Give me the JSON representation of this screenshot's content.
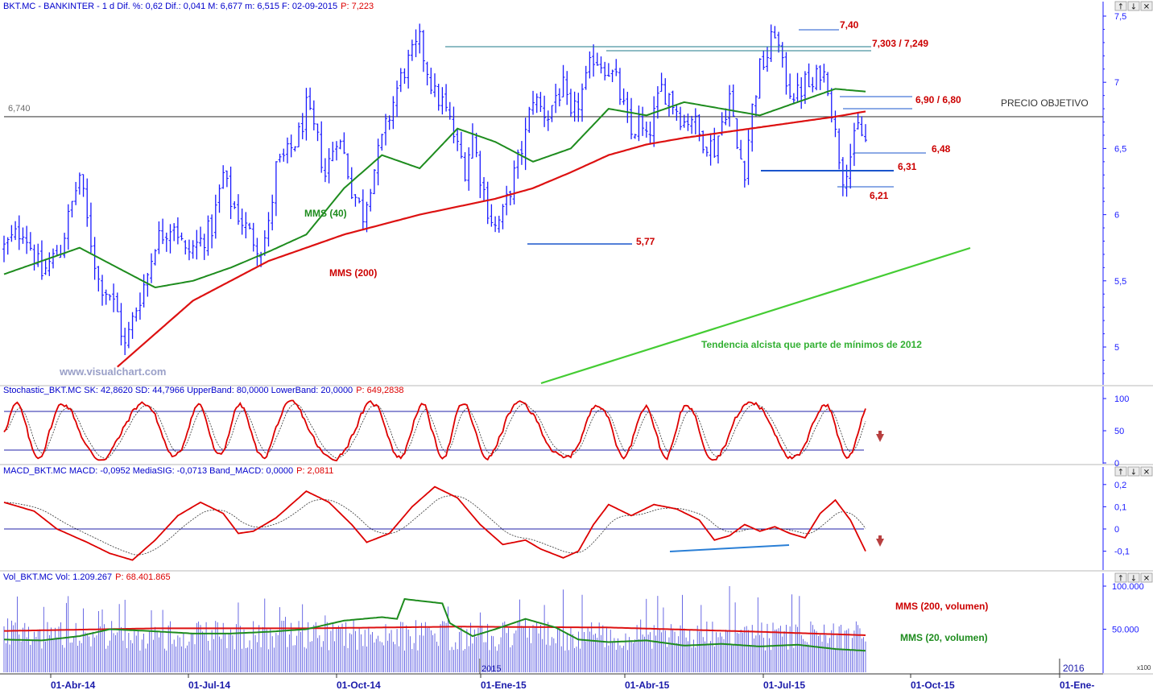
{
  "colors": {
    "price": "#1a1aff",
    "sma40": "#1e8c1e",
    "sma200": "#dd1111",
    "annot_red": "#cc0000",
    "annot_blue": "#1a55cc",
    "trend": "#44cc33",
    "axis": "#1a1aff",
    "header_blue": "#0000cc",
    "header_red": "#dd0000",
    "watermark": "#9aa0c8",
    "ref_line": "#6b6b6b"
  },
  "window_buttons": [
    "↑",
    "↓",
    "✕"
  ],
  "header": {
    "main": "BKT.MC - BANKINTER - 1 d Dif. %: 0,62 Dif.: 0,041 M: 6,677 m: 6,515 F: 02-09-2015",
    "main_p": "P: 7,223",
    "stoch": "Stochastic_BKT.MC SK: 42,8620 SD: 44,7966 UpperBand: 80,0000 LowerBand: 20,0000",
    "stoch_p": "P: 649,2838",
    "macd": "MACD_BKT.MC MACD: -0,0952 MediaSIG: -0,0713 Band_MACD: 0,0000",
    "macd_p": "P: 2,0811",
    "vol": "Vol_BKT.MC Vol: 1.209.267",
    "vol_p": "P: 68.401.865"
  },
  "annotations": {
    "ref_value": "6,740",
    "precio_objetivo": "PRECIO OBJETIVO",
    "l740": "7,40",
    "l7303": "7,303 / 7,249",
    "l690": "6,90 / 6,80",
    "l648": "6,48",
    "l631": "6,31",
    "l621": "6,21",
    "l577": "5,77",
    "mms40": "MMS (40)",
    "mms200": "MMS (200)",
    "trend_text": "Tendencia alcista que parte de mínimos de 2012",
    "watermark": "www.visualchart.com",
    "vol_mms200": "MMS (200, volumen)",
    "vol_mms20": "MMS (20, volumen)",
    "year_2015": "2015",
    "year_2016": "2016",
    "x100": "x100"
  },
  "chart_data": [
    {
      "type": "line",
      "title": "BKT.MC - BANKINTER",
      "series_names": [
        "MMS (40)",
        "MMS (200)"
      ],
      "x_tick_labels": [
        "01-Abr-14",
        "01-Jul-14",
        "01-Oct-14",
        "01-Ene-15",
        "01-Abr-15",
        "01-Jul-15",
        "01-Oct-15",
        "01-Ene-"
      ],
      "y_tick_labels": [
        "7,5",
        "7",
        "6,5",
        "6",
        "5,5",
        "5"
      ],
      "ylim": [
        4.75,
        7.55
      ],
      "key_prices": [
        7.4,
        7.303,
        7.249,
        6.9,
        6.8,
        6.74,
        6.48,
        6.31,
        6.21,
        5.77
      ],
      "close_path": [
        [
          0,
          5.75
        ],
        [
          5,
          5.9
        ],
        [
          10,
          5.55
        ],
        [
          15,
          5.75
        ],
        [
          20,
          6.3
        ],
        [
          22,
          5.95
        ],
        [
          25,
          5.5
        ],
        [
          28,
          5.4
        ],
        [
          30,
          5.25
        ],
        [
          32,
          5.0
        ],
        [
          35,
          5.3
        ],
        [
          38,
          5.55
        ],
        [
          40,
          5.8
        ],
        [
          45,
          5.95
        ],
        [
          48,
          5.7
        ],
        [
          52,
          5.8
        ],
        [
          55,
          5.9
        ],
        [
          58,
          6.3
        ],
        [
          60,
          6.1
        ],
        [
          62,
          6.0
        ],
        [
          65,
          5.85
        ],
        [
          68,
          5.75
        ],
        [
          70,
          5.9
        ],
        [
          72,
          6.35
        ],
        [
          75,
          6.45
        ],
        [
          78,
          6.6
        ],
        [
          80,
          6.8
        ],
        [
          83,
          6.55
        ],
        [
          85,
          6.3
        ],
        [
          88,
          6.6
        ],
        [
          90,
          6.45
        ],
        [
          92,
          6.2
        ],
        [
          95,
          6.0
        ],
        [
          97,
          6.25
        ],
        [
          100,
          6.55
        ],
        [
          102,
          6.75
        ],
        [
          104,
          6.95
        ],
        [
          106,
          7.1
        ],
        [
          108,
          7.2
        ],
        [
          110,
          7.3
        ],
        [
          112,
          7.1
        ],
        [
          114,
          6.9
        ],
        [
          116,
          6.85
        ],
        [
          118,
          6.7
        ],
        [
          120,
          6.5
        ],
        [
          122,
          6.35
        ],
        [
          124,
          6.6
        ],
        [
          126,
          6.3
        ],
        [
          128,
          6.05
        ],
        [
          130,
          5.9
        ],
        [
          132,
          6.0
        ],
        [
          134,
          6.2
        ],
        [
          136,
          6.4
        ],
        [
          138,
          6.6
        ],
        [
          140,
          6.9
        ],
        [
          142,
          6.8
        ],
        [
          144,
          6.75
        ],
        [
          146,
          6.9
        ],
        [
          148,
          6.95
        ],
        [
          150,
          6.7
        ],
        [
          152,
          6.85
        ],
        [
          154,
          7.0
        ],
        [
          156,
          7.2
        ],
        [
          158,
          7.15
        ],
        [
          160,
          7.1
        ],
        [
          162,
          7.0
        ],
        [
          164,
          6.8
        ],
        [
          166,
          6.6
        ],
        [
          168,
          6.7
        ],
        [
          170,
          6.55
        ],
        [
          172,
          6.75
        ],
        [
          174,
          6.95
        ],
        [
          176,
          6.9
        ],
        [
          178,
          6.8
        ],
        [
          180,
          6.7
        ],
        [
          182,
          6.75
        ],
        [
          184,
          6.6
        ],
        [
          186,
          6.55
        ],
        [
          188,
          6.5
        ],
        [
          190,
          6.7
        ],
        [
          192,
          6.9
        ],
        [
          194,
          6.5
        ],
        [
          196,
          6.35
        ],
        [
          198,
          6.8
        ],
        [
          200,
          7.1
        ],
        [
          202,
          7.2
        ],
        [
          204,
          7.4
        ],
        [
          206,
          7.1
        ],
        [
          208,
          6.95
        ],
        [
          210,
          6.9
        ],
        [
          212,
          7.0
        ],
        [
          214,
          6.95
        ],
        [
          216,
          7.1
        ],
        [
          218,
          7.0
        ],
        [
          220,
          6.6
        ],
        [
          222,
          6.3
        ],
        [
          224,
          6.45
        ],
        [
          226,
          6.65
        ],
        [
          228,
          6.55
        ]
      ],
      "sma40_path": [
        [
          0,
          5.55
        ],
        [
          10,
          5.65
        ],
        [
          20,
          5.75
        ],
        [
          30,
          5.6
        ],
        [
          40,
          5.45
        ],
        [
          50,
          5.5
        ],
        [
          60,
          5.6
        ],
        [
          70,
          5.72
        ],
        [
          80,
          5.85
        ],
        [
          90,
          6.2
        ],
        [
          100,
          6.45
        ],
        [
          110,
          6.35
        ],
        [
          120,
          6.65
        ],
        [
          130,
          6.55
        ],
        [
          140,
          6.4
        ],
        [
          150,
          6.5
        ],
        [
          160,
          6.8
        ],
        [
          170,
          6.75
        ],
        [
          180,
          6.85
        ],
        [
          190,
          6.8
        ],
        [
          200,
          6.75
        ],
        [
          210,
          6.85
        ],
        [
          220,
          6.95
        ],
        [
          228,
          6.93
        ]
      ],
      "sma200_path": [
        [
          30,
          4.85
        ],
        [
          50,
          5.35
        ],
        [
          70,
          5.65
        ],
        [
          90,
          5.85
        ],
        [
          110,
          6.0
        ],
        [
          130,
          6.12
        ],
        [
          140,
          6.2
        ],
        [
          150,
          6.32
        ],
        [
          160,
          6.45
        ],
        [
          170,
          6.53
        ],
        [
          180,
          6.58
        ],
        [
          190,
          6.62
        ],
        [
          200,
          6.66
        ],
        [
          210,
          6.7
        ],
        [
          220,
          6.74
        ],
        [
          228,
          6.78
        ]
      ]
    },
    {
      "type": "line",
      "title": "Stochastic_BKT.MC",
      "y_tick_labels": [
        "100",
        "50",
        "0"
      ],
      "ylim": [
        0,
        100
      ],
      "bands": [
        80,
        20
      ]
    },
    {
      "type": "line",
      "title": "MACD_BKT.MC",
      "y_tick_labels": [
        "0,2",
        "0,1",
        "0",
        "-0,1"
      ],
      "ylim": [
        -0.15,
        0.22
      ]
    },
    {
      "type": "bar",
      "title": "Vol_BKT.MC",
      "series_names": [
        "MMS (200, volumen)",
        "MMS (20, volumen)"
      ],
      "y_tick_labels": [
        "100.000",
        "50.000"
      ],
      "ylim": [
        0,
        100000
      ]
    }
  ]
}
